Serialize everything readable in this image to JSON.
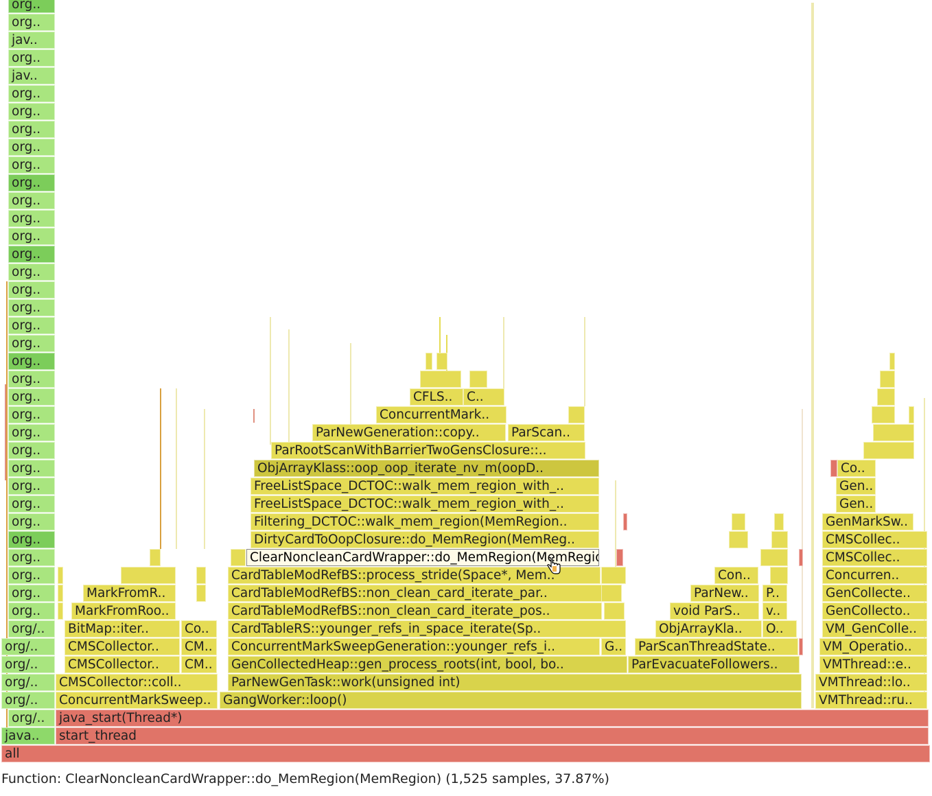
{
  "status": {
    "label": "Function:",
    "function": "ClearNoncleanCardWrapper::do_MemRegion(MemRegion)",
    "samples": "(1,525 samples, 37.87%)"
  },
  "colors": {
    "java_green": "#8ed96a",
    "java_green_light": "#a9e57f",
    "cpp_yellow": "#d9d34b",
    "cpp_yellow_light": "#e5dc55",
    "native_red": "#e07468",
    "highlight": "#fffbe8"
  },
  "cursor_icon": "hand-pointer-icon",
  "frames": {
    "all": "all",
    "start_thread": "start_thread",
    "java_start": "java_start(Thread*)",
    "java_root": "java..",
    "org_java": "org/..",
    "org": "org..",
    "jav": "jav..",
    "cms_concurrent_mark_sweep": "ConcurrentMarkSweep..",
    "cms_collector_coll": "CMSCollector::coll..",
    "cms_collector_1": "CMSCollector..",
    "cms_collector_2": "CMSCollector..",
    "cm_1": "CM..",
    "cm_2": "CM..",
    "bitmap_iter": "BitMap::iter..",
    "co": "Co..",
    "mark_from_roo": "MarkFromRoo..",
    "mark_from_r": "MarkFromR..",
    "gang_worker_loop": "GangWorker::loop()",
    "par_new_gen_task": "ParNewGenTask::work(unsigned int)",
    "gen_process_roots": "GenCollectedHeap::gen_process_roots(int, bool, bo..",
    "cmsg_younger_refs": "ConcurrentMarkSweepGeneration::younger_refs_i..",
    "g_short": "G..",
    "cardtablers_younger": "CardTableRS::younger_refs_in_space_iterate(Sp..",
    "non_clean_pos": "CardTableModRefBS::non_clean_card_iterate_pos..",
    "non_clean_par": "CardTableModRefBS::non_clean_card_iterate_par..",
    "process_stride": "CardTableModRefBS::process_stride(Space*, Mem..",
    "clear_noncleancard": "ClearNoncleanCardWrapper::do_MemRegion(MemRegion)",
    "dirty_card": "DirtyCardToOopClosure::do_MemRegion(MemReg..",
    "filtering_dctoc": "Filtering_DCTOC::walk_mem_region(MemRegion..",
    "freelist_1": "FreeListSpace_DCTOC::walk_mem_region_with_..",
    "freelist_2": "FreeListSpace_DCTOC::walk_mem_region_with_..",
    "objarray_oop_iterate": "ObjArrayKlass::oop_oop_iterate_nv_m(oopD..",
    "par_root_scan": "ParRootScanWithBarrierTwoGensClosure::..",
    "par_new_gen_copy": "ParNewGeneration::copy..",
    "par_scan": "ParScan..",
    "concurrent_mark": "ConcurrentMark..",
    "cfls": "CFLS..",
    "c_short": "C..",
    "par_evacuate": "ParEvacuateFollowers..",
    "par_scan_thread_state": "ParScanThreadState..",
    "objarray_kla": "ObjArrayKla..",
    "o_short": "O..",
    "void_pars": "void ParS..",
    "v_short": "v..",
    "par_new_short": "ParNew..",
    "p_short": "P..",
    "con_short": "Con..",
    "vm_thread_ru": "VMThread::ru..",
    "vm_thread_lo": "VMThread::lo..",
    "vm_thread_e": "VMThread::e..",
    "vm_operatio": "VM_Operatio..",
    "vm_gen_colle": "VM_GenColle..",
    "gen_collecto": "GenCollecto..",
    "gen_collecte": "GenCollecte..",
    "concurren": "Concurren..",
    "cms_collec_1": "CMSCollec..",
    "cms_collec_2": "CMSCollec..",
    "gen_mark_sw": "GenMarkSw..",
    "gen_1": "Gen..",
    "gen_2": "Gen..",
    "co_2": "Co.."
  }
}
